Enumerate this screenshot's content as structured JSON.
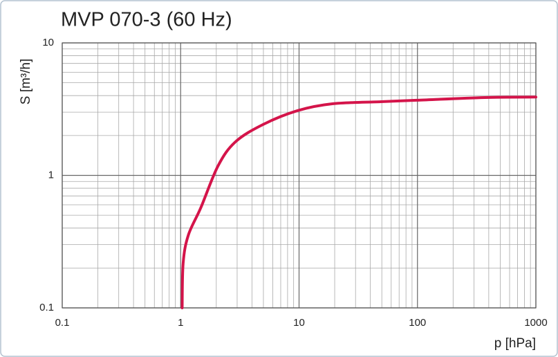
{
  "chart_data": {
    "type": "line",
    "title": "MVP 070-3 (60 Hz)",
    "x_label": "p  [hPa]",
    "y_label": "S  [m³/h]",
    "x": [
      1.03,
      1.05,
      1.16,
      1.48,
      2.07,
      2.9,
      4.96,
      9.7,
      19.1,
      49,
      98,
      369,
      1000
    ],
    "values": [
      0.1,
      0.218,
      0.353,
      0.57,
      1.18,
      1.79,
      2.42,
      3.08,
      3.47,
      3.6,
      3.69,
      3.87,
      3.9
    ],
    "color": "#d4144a",
    "xlim": [
      0.1,
      1000
    ],
    "xticks": [
      0.1,
      1,
      10,
      100,
      1000
    ],
    "ylim": [
      0.1,
      10
    ],
    "yticks": [
      0.1,
      1,
      10
    ],
    "xscale": "log",
    "yscale": "log",
    "grid": true
  }
}
